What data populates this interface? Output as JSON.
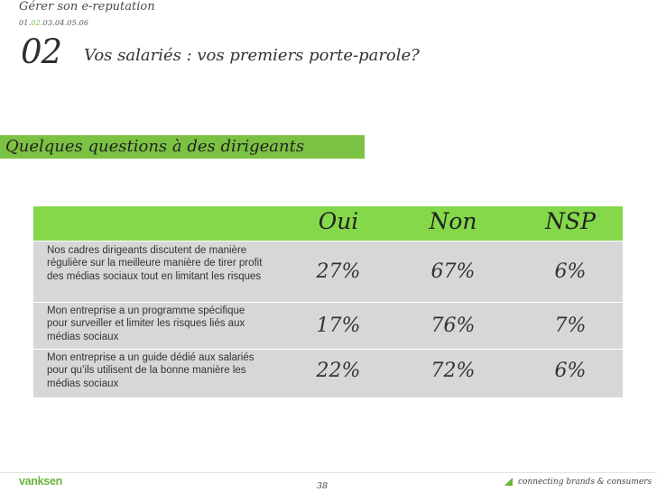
{
  "header": {
    "breadcrumb": "Gérer son e-reputation",
    "chapters": {
      "before": "01.",
      "active": "02",
      "after": ".03.04.05.06"
    },
    "section_number": "02",
    "section_title": "Vos salariés : vos premiers porte-parole?"
  },
  "banner": {
    "text": "Quelques questions à des dirigeants",
    "color": "#7cc242"
  },
  "table": {
    "columns": [
      "Oui",
      "Non",
      "NSP"
    ],
    "header_color": "#84d84a",
    "row_color": "#d7d7d7",
    "rows": [
      {
        "question": "Nos cadres dirigeants discutent de manière  régulière sur la meilleure manière de tirer profit des médias sociaux tout en limitant les risques",
        "values": [
          "27%",
          "67%",
          "6%"
        ]
      },
      {
        "question": "Mon entreprise a un programme spécifique pour surveiller et limiter les risques liés aux médias sociaux",
        "values": [
          "17%",
          "76%",
          "7%"
        ]
      },
      {
        "question": "Mon entreprise a un guide dédié aux salariés pour qu’ils utilisent de la bonne manière les médias sociaux",
        "values": [
          "22%",
          "72%",
          "6%"
        ]
      }
    ]
  },
  "footer": {
    "logo": "vanksen",
    "page_number": "38",
    "tagline": "connecting brands & consumers",
    "tag_icon": "corner-triangle-icon",
    "brand_color": "#6ab33a"
  }
}
